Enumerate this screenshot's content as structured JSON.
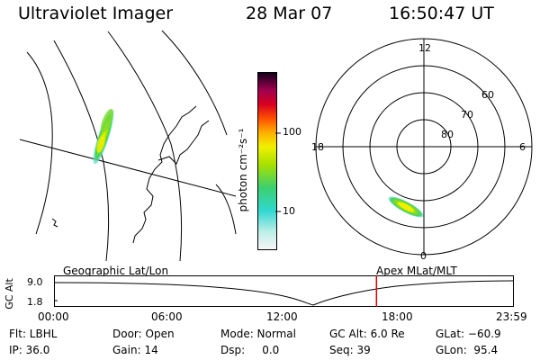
{
  "header": {
    "instrument": "Ultraviolet Imager",
    "date": "28 Mar 07",
    "time": "16:50:47 UT"
  },
  "colorbar": {
    "unit_label": "photon cm⁻²s⁻¹",
    "ticks": [
      "100",
      "10"
    ]
  },
  "polar": {
    "mlt_labels": [
      "12",
      "18",
      "6",
      "0"
    ],
    "lat_labels": [
      "60",
      "70",
      "80"
    ]
  },
  "altitude_panel": {
    "ylabel": "GC Alt",
    "y_ticks": [
      "9.0",
      "1.8"
    ],
    "left_title": "Geographic Lat/Lon",
    "right_title": "Apex  MLat/MLT",
    "time_ticks": [
      "00:00",
      "06:00",
      "12:00",
      "18:00",
      "23:59"
    ],
    "current_time_fraction": 0.702
  },
  "info": {
    "row1": {
      "flt": "Flt: LBHL",
      "door": "Door: Open",
      "mode": "Mode: Normal",
      "gcalt": "GC Alt: 6.0 Re",
      "glat": "GLat: −60.9"
    },
    "row2": {
      "ip": "IP: 36.0",
      "gain": "Gain: 14",
      "dsp": "Dsp:     0.0",
      "seq": "Seq: 39",
      "glon": "GLon:  95.4"
    }
  },
  "colors": {
    "marker": "#e00000",
    "line": "#000000"
  }
}
